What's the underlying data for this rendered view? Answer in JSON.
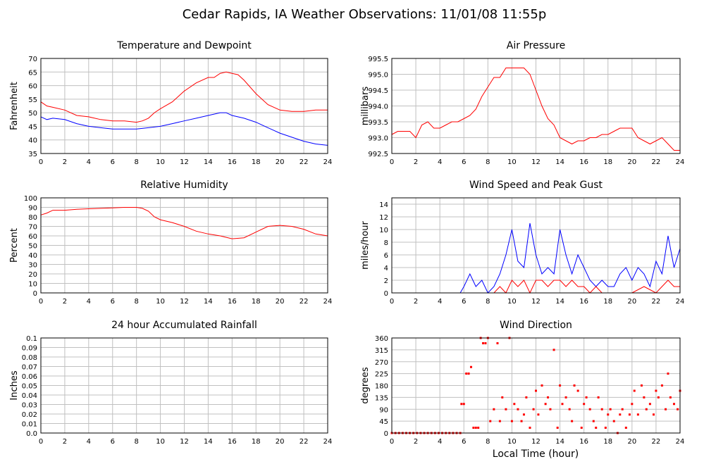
{
  "page": {
    "title": "Cedar Rapids, IA Weather Observations: 11/01/08 11:55p",
    "xlabel": "Local Time (hour)"
  },
  "colors": {
    "red": "#ff0000",
    "blue": "#0000ff",
    "grid": "#c0c0c0",
    "frame": "#000000"
  },
  "chart_data": [
    {
      "id": "temp",
      "type": "line",
      "title": "Temperature and Dewpoint",
      "ylabel": "Fahrenheit",
      "xlim": [
        0,
        24
      ],
      "ylim": [
        35,
        70
      ],
      "xticks": [
        0,
        2,
        4,
        6,
        8,
        10,
        12,
        14,
        16,
        18,
        20,
        22,
        24
      ],
      "yticks": [
        35,
        40,
        45,
        50,
        55,
        60,
        65,
        70
      ],
      "grid": true,
      "series": [
        {
          "color": "#ff0000",
          "x": [
            0,
            0.5,
            1,
            2,
            3,
            4,
            5,
            6,
            7,
            8,
            8.5,
            9,
            9.5,
            10,
            11,
            12,
            13,
            14,
            14.5,
            15,
            15.5,
            16,
            16.5,
            17,
            18,
            19,
            20,
            21,
            22,
            23,
            24
          ],
          "y": [
            54,
            52.5,
            52,
            51,
            49,
            48.5,
            47.5,
            47,
            47,
            46.5,
            47,
            48,
            50,
            51.5,
            54,
            58,
            61,
            63,
            63,
            64.5,
            65,
            64.5,
            64,
            62,
            57,
            53,
            51,
            50.5,
            50.5,
            51,
            51
          ]
        },
        {
          "color": "#0000ff",
          "x": [
            0,
            0.5,
            1,
            2,
            3,
            4,
            5,
            6,
            7,
            8,
            9,
            10,
            11,
            12,
            13,
            14,
            15,
            15.5,
            16,
            17,
            18,
            19,
            20,
            21,
            22,
            23,
            24
          ],
          "y": [
            48.5,
            47.5,
            48,
            47.5,
            46,
            45,
            44.5,
            44,
            44,
            44,
            44.5,
            45,
            46,
            47,
            48,
            49,
            50,
            50,
            49,
            48,
            46.5,
            44.5,
            42.5,
            41,
            39.5,
            38.5,
            38
          ]
        }
      ]
    },
    {
      "id": "pressure",
      "type": "line",
      "title": "Air Pressure",
      "ylabel": "millibars",
      "xlim": [
        0,
        24
      ],
      "ylim": [
        992.5,
        995.5
      ],
      "xticks": [
        0,
        2,
        4,
        6,
        8,
        10,
        12,
        14,
        16,
        18,
        20,
        22,
        24
      ],
      "yticks": [
        992.5,
        993.0,
        993.5,
        994.0,
        994.5,
        995.0,
        995.5
      ],
      "ytick_labels": [
        "992.5",
        "993.0",
        "993.5",
        "994.0",
        "994.5",
        "995.0",
        "995.5"
      ],
      "grid": true,
      "series": [
        {
          "color": "#ff0000",
          "x": [
            0,
            0.5,
            1,
            1.5,
            2,
            2.5,
            3,
            3.5,
            4,
            4.5,
            5,
            5.5,
            6,
            6.5,
            7,
            7.5,
            8,
            8.5,
            9,
            9.5,
            10,
            10.5,
            11,
            11.5,
            12,
            12.5,
            13,
            13.5,
            14,
            14.5,
            15,
            15.5,
            16,
            16.5,
            17,
            17.5,
            18,
            18.5,
            19,
            19.5,
            20,
            20.5,
            21,
            21.5,
            22,
            22.5,
            23,
            23.5,
            24
          ],
          "y": [
            993.1,
            993.2,
            993.2,
            993.2,
            993.0,
            993.4,
            993.5,
            993.3,
            993.3,
            993.4,
            993.5,
            993.5,
            993.6,
            993.7,
            993.9,
            994.3,
            994.6,
            994.9,
            994.9,
            995.2,
            995.2,
            995.2,
            995.2,
            995.0,
            994.5,
            994.0,
            993.6,
            993.4,
            993.0,
            992.9,
            992.8,
            992.9,
            992.9,
            993.0,
            993.0,
            993.1,
            993.1,
            993.2,
            993.3,
            993.3,
            993.3,
            993.0,
            992.9,
            992.8,
            992.9,
            993.0,
            992.8,
            992.6,
            992.6
          ]
        }
      ]
    },
    {
      "id": "humidity",
      "type": "line",
      "title": "Relative Humidity",
      "ylabel": "Percent",
      "xlim": [
        0,
        24
      ],
      "ylim": [
        0,
        100
      ],
      "xticks": [
        0,
        2,
        4,
        6,
        8,
        10,
        12,
        14,
        16,
        18,
        20,
        22,
        24
      ],
      "yticks": [
        0,
        10,
        20,
        30,
        40,
        50,
        60,
        70,
        80,
        90,
        100
      ],
      "grid": true,
      "series": [
        {
          "color": "#ff0000",
          "x": [
            0,
            0.5,
            1,
            2,
            3,
            4,
            5,
            6,
            7,
            8,
            8.5,
            9,
            9.5,
            10,
            11,
            12,
            13,
            14,
            15,
            16,
            17,
            18,
            19,
            20,
            21,
            22,
            23,
            24
          ],
          "y": [
            82,
            84,
            87,
            87,
            88,
            88.5,
            89,
            89.5,
            90,
            90,
            89,
            86,
            80,
            77,
            74,
            70,
            65,
            62,
            60,
            57,
            58,
            64,
            70,
            71,
            70,
            67,
            62,
            60
          ]
        }
      ]
    },
    {
      "id": "wind",
      "type": "line",
      "title": "Wind Speed and Peak Gust",
      "ylabel": "miles/hour",
      "xlim": [
        0,
        24
      ],
      "ylim": [
        0,
        15
      ],
      "xticks": [
        0,
        2,
        4,
        6,
        8,
        10,
        12,
        14,
        16,
        18,
        20,
        22,
        24
      ],
      "yticks": [
        0,
        2,
        4,
        6,
        8,
        10,
        12,
        14
      ],
      "grid": true,
      "series": [
        {
          "color": "#0000ff",
          "x": [
            0,
            5.7,
            6,
            6.5,
            7,
            7.5,
            8,
            8.5,
            9,
            9.5,
            10,
            10.5,
            11,
            11.5,
            12,
            12.5,
            13,
            13.5,
            14,
            14.5,
            15,
            15.5,
            16,
            16.5,
            17,
            17.5,
            18,
            18.5,
            19,
            19.5,
            20,
            20.5,
            21,
            21.5,
            22,
            22.5,
            23,
            23.5,
            24
          ],
          "y": [
            0,
            0,
            1,
            3,
            1,
            2,
            0,
            1,
            3,
            6,
            10,
            5,
            4,
            11,
            6,
            3,
            4,
            3,
            10,
            6,
            3,
            6,
            4,
            2,
            1,
            2,
            1,
            1,
            3,
            4,
            2,
            4,
            3,
            1,
            5,
            3,
            9,
            4,
            7
          ]
        },
        {
          "color": "#ff0000",
          "x": [
            0,
            8.5,
            9,
            9.5,
            10,
            10.5,
            11,
            11.5,
            12,
            12.5,
            13,
            13.5,
            14,
            14.5,
            15,
            15.5,
            16,
            16.5,
            17,
            17.5,
            18,
            19,
            20,
            21,
            22,
            22.5,
            23,
            23.5,
            24
          ],
          "y": [
            0,
            0,
            1,
            0,
            2,
            1,
            2,
            0,
            2,
            2,
            1,
            2,
            2,
            1,
            2,
            1,
            1,
            0,
            1,
            0,
            0,
            0,
            0,
            1,
            0,
            1,
            2,
            1,
            1
          ]
        }
      ]
    },
    {
      "id": "rain",
      "type": "line",
      "title": "24 hour Accumulated Rainfall",
      "ylabel": "Inches",
      "xlim": [
        0,
        24
      ],
      "ylim": [
        0,
        0.1
      ],
      "xticks": [
        0,
        2,
        4,
        6,
        8,
        10,
        12,
        14,
        16,
        18,
        20,
        22,
        24
      ],
      "yticks": [
        0,
        0.01,
        0.02,
        0.03,
        0.04,
        0.05,
        0.06,
        0.07,
        0.08,
        0.09,
        0.1
      ],
      "ytick_labels": [
        "0.0",
        "0.01",
        "0.02",
        "0.03",
        "0.04",
        "0.05",
        "0.06",
        "0.07",
        "0.08",
        "0.09",
        "0.1"
      ],
      "grid": true,
      "series": [
        {
          "color": "#ff0000",
          "x": [
            0,
            24
          ],
          "y": [
            0,
            0
          ]
        }
      ]
    },
    {
      "id": "direction",
      "type": "scatter",
      "title": "Wind Direction",
      "ylabel": "degrees",
      "xlim": [
        0,
        24
      ],
      "ylim": [
        0,
        360
      ],
      "xticks": [
        0,
        2,
        4,
        6,
        8,
        10,
        12,
        14,
        16,
        18,
        20,
        22,
        24
      ],
      "yticks": [
        0,
        45,
        90,
        135,
        180,
        225,
        270,
        315,
        360
      ],
      "grid": true,
      "series": [
        {
          "color": "#ff0000",
          "x": [
            0,
            0.3,
            0.6,
            0.9,
            1.2,
            1.5,
            1.8,
            2.1,
            2.4,
            2.7,
            3,
            3.3,
            3.6,
            3.9,
            4.2,
            4.5,
            4.8,
            5.1,
            5.4,
            5.7,
            5.8,
            6,
            6.2,
            6.4,
            6.6,
            6.8,
            7,
            7.2,
            7.4,
            7.6,
            7.8,
            8,
            8.2,
            8.5,
            8.8,
            9,
            9.2,
            9.5,
            9.8,
            10,
            10.2,
            10.5,
            10.8,
            11,
            11.2,
            11.5,
            11.8,
            12,
            12.2,
            12.5,
            12.8,
            13,
            13.2,
            13.5,
            13.8,
            14,
            14.2,
            14.5,
            14.8,
            15,
            15.2,
            15.5,
            15.8,
            16,
            16.2,
            16.5,
            16.8,
            17,
            17.2,
            17.5,
            17.8,
            18,
            18.2,
            18.5,
            18.8,
            19,
            19.2,
            19.5,
            19.8,
            20,
            20.2,
            20.5,
            20.8,
            21,
            21.2,
            21.5,
            21.8,
            22,
            22.2,
            22.5,
            22.8,
            23,
            23.2,
            23.5,
            23.8,
            24
          ],
          "y": [
            0,
            0,
            0,
            0,
            0,
            0,
            0,
            0,
            0,
            0,
            0,
            0,
            0,
            0,
            0,
            0,
            0,
            0,
            0,
            0,
            110,
            110,
            225,
            225,
            250,
            20,
            20,
            20,
            360,
            340,
            340,
            360,
            45,
            90,
            340,
            45,
            135,
            90,
            360,
            45,
            110,
            90,
            45,
            70,
            135,
            20,
            90,
            160,
            70,
            180,
            110,
            135,
            90,
            315,
            20,
            180,
            110,
            135,
            90,
            45,
            180,
            160,
            20,
            110,
            135,
            90,
            45,
            20,
            135,
            90,
            20,
            70,
            90,
            45,
            0,
            70,
            90,
            20,
            70,
            110,
            160,
            70,
            180,
            135,
            90,
            110,
            70,
            160,
            135,
            180,
            90,
            225,
            135,
            110,
            90,
            160
          ]
        }
      ]
    }
  ]
}
